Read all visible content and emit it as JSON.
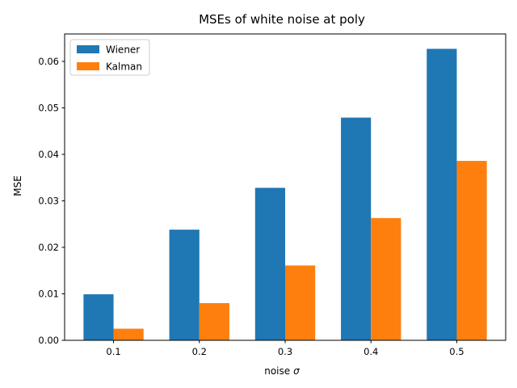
{
  "chart_data": {
    "type": "bar",
    "title": "MSEs of white noise at poly",
    "xlabel": "noise",
    "xlabel_symbol": "σ",
    "ylabel": "MSE",
    "categories": [
      "0.1",
      "0.2",
      "0.3",
      "0.4",
      "0.5"
    ],
    "series": [
      {
        "name": "Wiener",
        "color": "#1f77b4",
        "values": [
          0.0099,
          0.0238,
          0.0328,
          0.0479,
          0.0627
        ]
      },
      {
        "name": "Kalman",
        "color": "#ff7f0e",
        "values": [
          0.0025,
          0.008,
          0.0161,
          0.0263,
          0.0386
        ]
      }
    ],
    "ylim": [
      0,
      0.0659
    ],
    "yticks": [
      "0.00",
      "0.01",
      "0.02",
      "0.03",
      "0.04",
      "0.05",
      "0.06"
    ],
    "grid": false,
    "legend_position": "top-left"
  }
}
